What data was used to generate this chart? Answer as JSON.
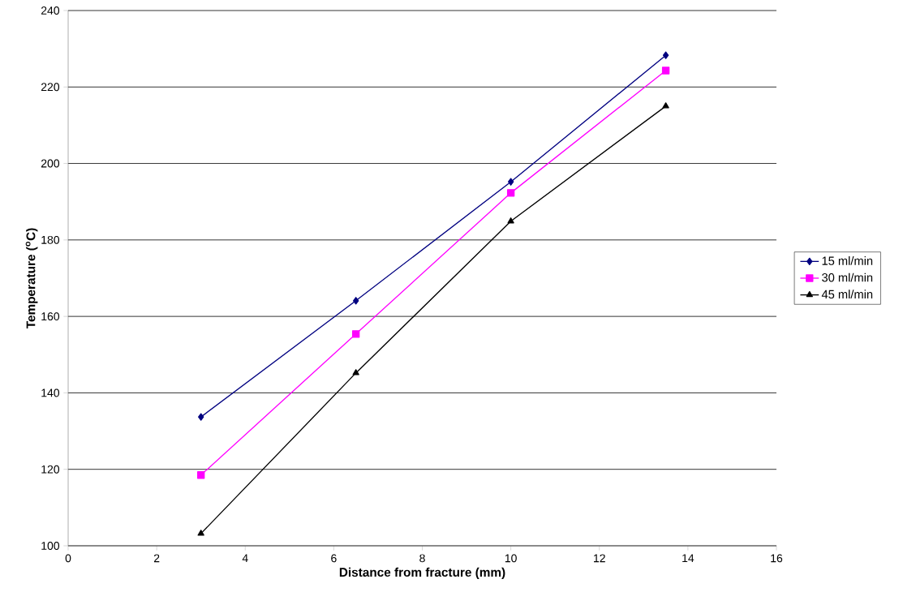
{
  "chart_data": {
    "type": "line",
    "xlabel": "Distance from fracture (mm)",
    "ylabel": "Temperature ($^{o}$C)",
    "x": [
      3,
      6.5,
      10,
      13.5
    ],
    "series": [
      {
        "name": "15 ml/min",
        "color": "#000080",
        "marker": "diamond",
        "values": [
          133.7,
          164.1,
          195.2,
          228.3
        ]
      },
      {
        "name": "30 ml/min",
        "color": "#ff00ff",
        "marker": "square",
        "values": [
          118.5,
          155.4,
          192.3,
          224.3
        ]
      },
      {
        "name": "45 ml/min",
        "color": "#000000",
        "marker": "triangle",
        "values": [
          103.2,
          145.2,
          184.9,
          215
        ]
      }
    ],
    "xlim": [
      0,
      16
    ],
    "xticks": [
      0,
      2,
      4,
      6,
      8,
      10,
      12,
      14,
      16
    ],
    "ylim": [
      100,
      240
    ],
    "yticks": [
      100,
      120,
      140,
      160,
      180,
      200,
      220,
      240
    ],
    "grid": "y",
    "legend": "right",
    "line_style": "solid"
  }
}
